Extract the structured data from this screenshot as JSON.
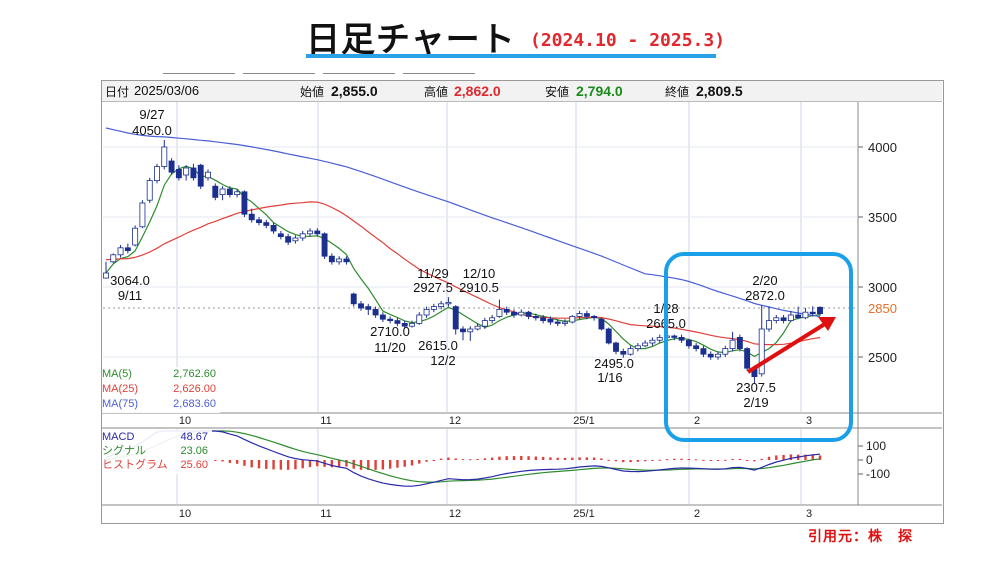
{
  "header": {
    "title": "日足チャート",
    "range": "(2024.10 - 2025.3)"
  },
  "info": {
    "date_label": "日付",
    "date": "2025/03/06",
    "open_label": "始値",
    "open": "2,855.0",
    "high_label": "高値",
    "high": "2,862.0",
    "low_label": "安値",
    "low": "2,794.0",
    "close_label": "終値",
    "close": "2,809.5"
  },
  "legend": {
    "ma5_label": "MA(5)",
    "ma5_value": "2,762.60",
    "ma25_label": "MA(25)",
    "ma25_value": "2,626.00",
    "ma75_label": "MA(75)",
    "ma75_value": "2,683.60",
    "macd_label": "MACD",
    "macd_value": "48.67",
    "signal_label": "シグナル",
    "signal_value": "23.06",
    "hist_label": "ヒストグラム",
    "hist_value": "25.60"
  },
  "colors": {
    "up": "#ffffff",
    "down": "#1b2f8f",
    "ma5": "#2e8b2e",
    "ma25": "#e0403a",
    "ma75": "#4a5fd6",
    "highlight_box": "#1aa0e8",
    "arrow": "#e01010",
    "current_price": "#e8702a"
  },
  "source": "引用元：株　探",
  "chart_data": {
    "type": "candlestick",
    "x_tick_labels": [
      "10",
      "11",
      "12",
      "25/1",
      "2",
      "3"
    ],
    "y_ticks": [
      2500,
      3000,
      3500,
      4000
    ],
    "ylim": [
      2200,
      4300
    ],
    "current_price": 2850,
    "current_price_label": "2850",
    "annotations": [
      {
        "date": "9/27",
        "value": "4050.0",
        "date_text": "9/27",
        "value_text": "4050.0"
      },
      {
        "date": "9/11",
        "value": "3064.0",
        "date_text": "9/11",
        "value_text": "3064.0"
      },
      {
        "date": "11/20",
        "value": "2710.0",
        "date_text": "11/20",
        "value_text": "2710.0"
      },
      {
        "date": "11/29",
        "value": "2927.5",
        "date_text": "11/29",
        "value_text": "2927.5"
      },
      {
        "date": "12/10",
        "value": "2910.5",
        "date_text": "12/10",
        "value_text": "2910.5"
      },
      {
        "date": "12/2",
        "value": "2615.0",
        "date_text": "12/2",
        "value_text": "2615.0"
      },
      {
        "date": "1/16",
        "value": "2495.0",
        "date_text": "1/16",
        "value_text": "2495.0"
      },
      {
        "date": "1/28",
        "value": "2665.0",
        "date_text": "1/28",
        "value_text": "2665.0"
      },
      {
        "date": "2/19",
        "value": "2307.5",
        "date_text": "2/19",
        "value_text": "2307.5"
      },
      {
        "date": "2/20",
        "value": "2872.0",
        "date_text": "2/20",
        "value_text": "2872.0"
      }
    ],
    "candles": [
      [
        3064,
        3100,
        3060,
        3180
      ],
      [
        3180,
        3230,
        3170,
        3240
      ],
      [
        3230,
        3280,
        3210,
        3300
      ],
      [
        3280,
        3260,
        3240,
        3310
      ],
      [
        3300,
        3420,
        3290,
        3440
      ],
      [
        3430,
        3600,
        3420,
        3620
      ],
      [
        3620,
        3760,
        3600,
        3780
      ],
      [
        3760,
        3860,
        3740,
        3880
      ],
      [
        3860,
        4000,
        3840,
        4050
      ],
      [
        3900,
        3820,
        3800,
        3920
      ],
      [
        3840,
        3780,
        3760,
        3870
      ],
      [
        3800,
        3850,
        3760,
        3870
      ],
      [
        3850,
        3780,
        3760,
        3880
      ],
      [
        3870,
        3720,
        3700,
        3880
      ],
      [
        3780,
        3820,
        3760,
        3840
      ],
      [
        3720,
        3640,
        3620,
        3740
      ],
      [
        3660,
        3700,
        3620,
        3720
      ],
      [
        3700,
        3660,
        3640,
        3720
      ],
      [
        3660,
        3680,
        3640,
        3700
      ],
      [
        3680,
        3520,
        3500,
        3690
      ],
      [
        3520,
        3480,
        3460,
        3560
      ],
      [
        3480,
        3460,
        3440,
        3500
      ],
      [
        3460,
        3440,
        3420,
        3480
      ],
      [
        3440,
        3400,
        3380,
        3460
      ],
      [
        3380,
        3360,
        3340,
        3400
      ],
      [
        3360,
        3320,
        3300,
        3380
      ],
      [
        3330,
        3350,
        3310,
        3370
      ],
      [
        3350,
        3380,
        3330,
        3400
      ],
      [
        3380,
        3400,
        3360,
        3420
      ],
      [
        3400,
        3380,
        3360,
        3420
      ],
      [
        3380,
        3220,
        3200,
        3390
      ],
      [
        3220,
        3180,
        3160,
        3240
      ],
      [
        3180,
        3200,
        3160,
        3220
      ],
      [
        3200,
        3180,
        3160,
        3220
      ],
      [
        2950,
        2880,
        2860,
        2960
      ],
      [
        2880,
        2850,
        2830,
        2900
      ],
      [
        2860,
        2840,
        2800,
        2880
      ],
      [
        2840,
        2800,
        2780,
        2860
      ],
      [
        2800,
        2770,
        2750,
        2820
      ],
      [
        2770,
        2760,
        2740,
        2790
      ],
      [
        2760,
        2740,
        2720,
        2780
      ],
      [
        2740,
        2720,
        2710,
        2760
      ],
      [
        2720,
        2740,
        2710,
        2760
      ],
      [
        2740,
        2800,
        2730,
        2820
      ],
      [
        2800,
        2840,
        2780,
        2860
      ],
      [
        2840,
        2860,
        2820,
        2880
      ],
      [
        2860,
        2880,
        2840,
        2900
      ],
      [
        2880,
        2890,
        2860,
        2927
      ],
      [
        2860,
        2700,
        2660,
        2870
      ],
      [
        2700,
        2680,
        2620,
        2720
      ],
      [
        2680,
        2700,
        2615,
        2720
      ],
      [
        2700,
        2720,
        2690,
        2740
      ],
      [
        2720,
        2760,
        2700,
        2780
      ],
      [
        2760,
        2780,
        2740,
        2800
      ],
      [
        2790,
        2840,
        2780,
        2910
      ],
      [
        2840,
        2820,
        2800,
        2860
      ],
      [
        2820,
        2800,
        2780,
        2840
      ],
      [
        2800,
        2820,
        2790,
        2840
      ],
      [
        2820,
        2790,
        2770,
        2830
      ],
      [
        2790,
        2780,
        2760,
        2810
      ],
      [
        2780,
        2760,
        2740,
        2800
      ],
      [
        2770,
        2750,
        2730,
        2790
      ],
      [
        2750,
        2740,
        2720,
        2770
      ],
      [
        2740,
        2750,
        2720,
        2770
      ],
      [
        2750,
        2790,
        2740,
        2800
      ],
      [
        2790,
        2810,
        2770,
        2830
      ],
      [
        2810,
        2790,
        2770,
        2830
      ],
      [
        2790,
        2780,
        2760,
        2800
      ],
      [
        2770,
        2700,
        2690,
        2780
      ],
      [
        2700,
        2600,
        2590,
        2710
      ],
      [
        2600,
        2540,
        2520,
        2610
      ],
      [
        2540,
        2520,
        2495,
        2560
      ],
      [
        2520,
        2560,
        2510,
        2580
      ],
      [
        2560,
        2580,
        2540,
        2600
      ],
      [
        2580,
        2600,
        2570,
        2620
      ],
      [
        2600,
        2620,
        2580,
        2640
      ],
      [
        2620,
        2640,
        2600,
        2660
      ],
      [
        2640,
        2650,
        2620,
        2665
      ],
      [
        2650,
        2640,
        2620,
        2660
      ],
      [
        2640,
        2620,
        2600,
        2660
      ],
      [
        2620,
        2580,
        2560,
        2630
      ],
      [
        2580,
        2560,
        2540,
        2600
      ],
      [
        2560,
        2520,
        2500,
        2580
      ],
      [
        2520,
        2500,
        2480,
        2540
      ],
      [
        2500,
        2520,
        2480,
        2540
      ],
      [
        2520,
        2560,
        2500,
        2580
      ],
      [
        2560,
        2620,
        2540,
        2680
      ],
      [
        2640,
        2560,
        2540,
        2660
      ],
      [
        2560,
        2420,
        2400,
        2570
      ],
      [
        2420,
        2360,
        2307,
        2440
      ],
      [
        2380,
        2700,
        2360,
        2872
      ],
      [
        2700,
        2760,
        2680,
        2860
      ],
      [
        2760,
        2780,
        2740,
        2800
      ],
      [
        2780,
        2760,
        2740,
        2800
      ],
      [
        2760,
        2800,
        2750,
        2830
      ],
      [
        2800,
        2780,
        2770,
        2860
      ],
      [
        2780,
        2820,
        2770,
        2850
      ],
      [
        2820,
        2810,
        2790,
        2862
      ],
      [
        2855,
        2810,
        2794,
        2862
      ]
    ],
    "macd_ticks": [
      100,
      0,
      -100
    ],
    "macd_ylim": [
      -200,
      130
    ]
  }
}
